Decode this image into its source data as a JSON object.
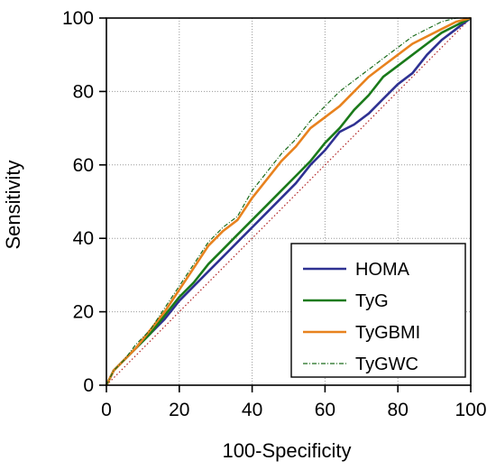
{
  "chart_data": {
    "type": "line",
    "title": "",
    "xlabel": "100-Specificity",
    "ylabel": "Sensitivity",
    "xlim": [
      0,
      100
    ],
    "ylim": [
      0,
      100
    ],
    "xticks": [
      0,
      20,
      40,
      60,
      80,
      100
    ],
    "yticks": [
      0,
      20,
      40,
      60,
      80,
      100
    ],
    "grid": true,
    "legend_position": "bottom-right",
    "reference_line": {
      "x": [
        0,
        100
      ],
      "y": [
        0,
        100
      ],
      "color": "#b22222",
      "style": "dotted"
    },
    "series": [
      {
        "name": "HOMA",
        "color": "#2e3192",
        "style": "solid",
        "x": [
          0,
          2,
          5,
          8,
          12,
          16,
          20,
          24,
          28,
          32,
          36,
          40,
          44,
          48,
          52,
          56,
          60,
          64,
          68,
          72,
          76,
          80,
          84,
          88,
          92,
          96,
          100
        ],
        "y": [
          0,
          4,
          7,
          10,
          14,
          18,
          23,
          27,
          31,
          35,
          39,
          43,
          47,
          51,
          55,
          60,
          64,
          69,
          71,
          74,
          78,
          82,
          85,
          90,
          94,
          97,
          100
        ]
      },
      {
        "name": "TyG",
        "color": "#1a7a1a",
        "style": "solid",
        "x": [
          0,
          2,
          5,
          8,
          12,
          16,
          20,
          24,
          28,
          32,
          36,
          40,
          44,
          48,
          52,
          56,
          60,
          64,
          68,
          72,
          76,
          80,
          84,
          88,
          92,
          96,
          100
        ],
        "y": [
          0,
          4,
          7,
          10,
          14,
          19,
          24,
          28,
          33,
          37,
          41,
          45,
          49,
          53,
          57,
          61,
          66,
          70,
          75,
          79,
          84,
          87,
          90,
          93,
          96,
          98,
          100
        ]
      },
      {
        "name": "TyGBMI",
        "color": "#e8821e",
        "style": "solid",
        "x": [
          0,
          2,
          5,
          8,
          12,
          16,
          20,
          24,
          28,
          32,
          36,
          40,
          44,
          48,
          52,
          56,
          60,
          64,
          68,
          72,
          76,
          80,
          84,
          88,
          92,
          96,
          100
        ],
        "y": [
          0,
          4,
          7,
          10,
          15,
          20,
          26,
          32,
          38,
          42,
          45,
          51,
          56,
          61,
          65,
          70,
          73,
          76,
          80,
          84,
          87,
          90,
          93,
          95,
          97,
          99,
          100
        ]
      },
      {
        "name": "TyGWC",
        "color": "#1a6b1a",
        "style": "dashdot",
        "x": [
          0,
          2,
          5,
          8,
          12,
          16,
          20,
          24,
          28,
          32,
          36,
          40,
          44,
          48,
          52,
          56,
          60,
          64,
          68,
          72,
          76,
          80,
          84,
          88,
          92,
          96,
          100
        ],
        "y": [
          0,
          4,
          7,
          11,
          15,
          21,
          27,
          33,
          39,
          43,
          46,
          53,
          58,
          63,
          67,
          72,
          76,
          80,
          83,
          86,
          89,
          92,
          95,
          97,
          99,
          100,
          100
        ]
      }
    ]
  }
}
